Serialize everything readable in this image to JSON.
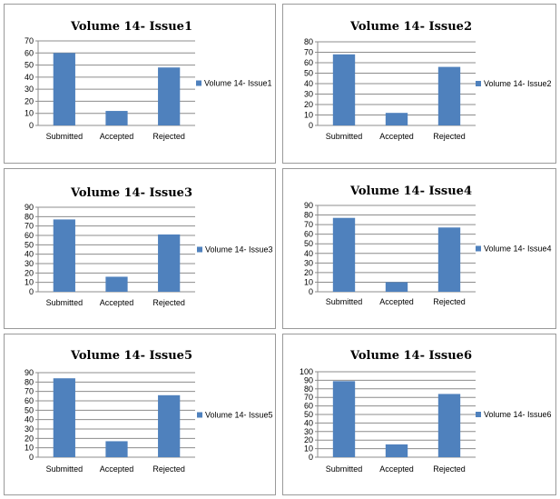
{
  "chart_data": [
    {
      "type": "bar",
      "title": "Volume 14- Issue1",
      "categories": [
        "Submitted",
        "Accepted",
        "Rejected"
      ],
      "series": [
        {
          "name": "Volume 14- Issue1",
          "values": [
            60,
            12,
            48
          ]
        }
      ],
      "ylim": [
        0,
        70
      ],
      "yticks": [
        0,
        10,
        20,
        30,
        40,
        50,
        60,
        70
      ],
      "grid": true,
      "legend": "right",
      "bar_color": "#4F81BD"
    },
    {
      "type": "bar",
      "title": "Volume 14- Issue2",
      "categories": [
        "Submitted",
        "Accepted",
        "Rejected"
      ],
      "series": [
        {
          "name": "Volume 14- Issue2",
          "values": [
            68,
            12,
            56
          ]
        }
      ],
      "ylim": [
        0,
        80
      ],
      "yticks": [
        0,
        10,
        20,
        30,
        40,
        50,
        60,
        70,
        80
      ],
      "grid": true,
      "legend": "right",
      "bar_color": "#4F81BD"
    },
    {
      "type": "bar",
      "title": "Volume 14- Issue3",
      "categories": [
        "Submitted",
        "Accepted",
        "Rejected"
      ],
      "series": [
        {
          "name": "Volume 14- Issue3",
          "values": [
            77,
            16,
            61
          ]
        }
      ],
      "ylim": [
        0,
        90
      ],
      "yticks": [
        0,
        10,
        20,
        30,
        40,
        50,
        60,
        70,
        80,
        90
      ],
      "grid": true,
      "legend": "right",
      "bar_color": "#4F81BD"
    },
    {
      "type": "bar",
      "title": "Volume 14- Issue4",
      "categories": [
        "Submitted",
        "Accepted",
        "Rejected"
      ],
      "series": [
        {
          "name": "Volume 14- Issue4",
          "values": [
            77,
            10,
            67
          ]
        }
      ],
      "ylim": [
        0,
        90
      ],
      "yticks": [
        0,
        10,
        20,
        30,
        40,
        50,
        60,
        70,
        80,
        90
      ],
      "grid": true,
      "legend": "right",
      "bar_color": "#4F81BD"
    },
    {
      "type": "bar",
      "title": "Volume 14- Issue5",
      "categories": [
        "Submitted",
        "Accepted",
        "Rejected"
      ],
      "series": [
        {
          "name": "Volume 14- Issue5",
          "values": [
            84,
            17,
            66
          ]
        }
      ],
      "ylim": [
        0,
        90
      ],
      "yticks": [
        0,
        10,
        20,
        30,
        40,
        50,
        60,
        70,
        80,
        90
      ],
      "grid": true,
      "legend": "right",
      "bar_color": "#4F81BD"
    },
    {
      "type": "bar",
      "title": "Volume 14- Issue6",
      "categories": [
        "Submitted",
        "Accepted",
        "Rejected"
      ],
      "series": [
        {
          "name": "Volume 14- Issue6",
          "values": [
            89,
            15,
            74
          ]
        }
      ],
      "ylim": [
        0,
        100
      ],
      "yticks": [
        0,
        10,
        20,
        30,
        40,
        50,
        60,
        70,
        80,
        90,
        100
      ],
      "grid": true,
      "legend": "right",
      "bar_color": "#4F81BD"
    }
  ]
}
